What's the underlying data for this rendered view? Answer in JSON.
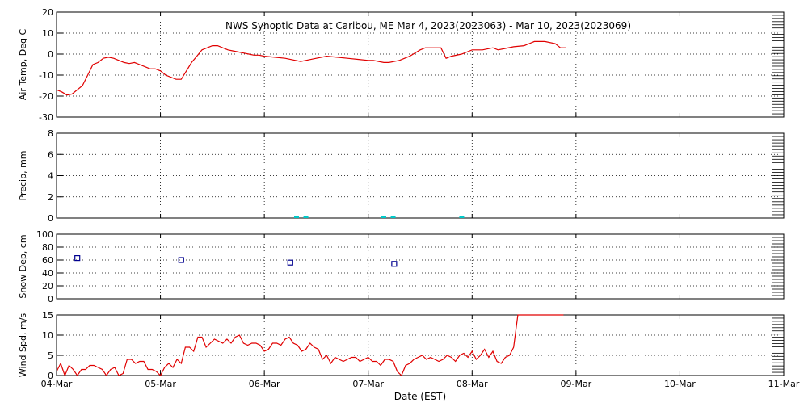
{
  "title": "NWS Synoptic Data at Caribou, ME   Mar  4, 2023(2023063) - Mar 10, 2023(2023069)",
  "xlabel": "Date (EST)",
  "x_tick_labels": [
    "04-Mar",
    "05-Mar",
    "06-Mar",
    "07-Mar",
    "08-Mar",
    "09-Mar",
    "10-Mar",
    "11-Mar"
  ],
  "colors": {
    "temp": "#e00000",
    "precip": "#00c8c8",
    "snow": "#000090",
    "wind": "#e00000",
    "axes": "#000000"
  },
  "chart_data": [
    {
      "type": "line",
      "ylabel": "Air Temp, Deg C",
      "ylim": [
        -30,
        20
      ],
      "yticks": [
        -30,
        -20,
        -10,
        0,
        10,
        20
      ],
      "xlim": [
        0,
        7
      ],
      "grid": true,
      "series": [
        {
          "x": [
            0.0,
            0.05,
            0.1,
            0.15,
            0.2,
            0.25,
            0.3,
            0.35,
            0.4,
            0.45,
            0.5,
            0.55,
            0.6,
            0.65,
            0.7,
            0.75,
            0.8,
            0.85,
            0.9,
            0.95,
            1.0,
            1.05,
            1.1,
            1.15,
            1.2,
            1.25,
            1.3,
            1.35,
            1.4,
            1.45,
            1.5,
            1.55,
            1.6,
            1.65,
            1.7,
            1.75,
            1.8,
            1.85,
            1.9,
            1.95,
            2.0,
            2.1,
            2.2,
            2.3,
            2.35,
            2.4,
            2.5,
            2.6,
            2.7,
            2.8,
            2.9,
            3.0,
            3.05,
            3.1,
            3.15,
            3.2,
            3.3,
            3.4,
            3.5,
            3.55,
            3.6,
            3.7,
            3.75,
            3.8,
            3.9,
            4.0,
            4.1,
            4.2,
            4.25,
            4.3,
            4.4,
            4.5,
            4.55,
            4.6,
            4.7,
            4.8,
            4.85,
            4.9
          ],
          "y": [
            -17,
            -18,
            -19.5,
            -19,
            -17,
            -15,
            -10,
            -5,
            -4,
            -2,
            -1.5,
            -2,
            -3,
            -4,
            -4.5,
            -4,
            -5,
            -6,
            -7,
            -7,
            -8,
            -10,
            -11,
            -12,
            -12,
            -8,
            -4,
            -1,
            2,
            3,
            4,
            4,
            3,
            2,
            1.5,
            1,
            0.5,
            0,
            -0.5,
            -0.5,
            -1,
            -1.5,
            -2,
            -3,
            -3.5,
            -3,
            -2,
            -1,
            -1.5,
            -2,
            -2.5,
            -3,
            -3,
            -3.5,
            -4,
            -4,
            -3,
            -1,
            2,
            3,
            3,
            3,
            -2,
            -1,
            0,
            2,
            2,
            3,
            2,
            2.5,
            3.5,
            4,
            5,
            6,
            6,
            5,
            3,
            3
          ]
        }
      ]
    },
    {
      "type": "bar",
      "ylabel": "Precip, mm",
      "ylim": [
        0,
        8
      ],
      "yticks": [
        0,
        2,
        4,
        6,
        8
      ],
      "xlim": [
        0,
        7
      ],
      "grid": true,
      "series": [
        {
          "x": [
            2.31,
            2.4,
            3.15,
            3.24,
            3.9
          ],
          "y": [
            0.1,
            0.1,
            0.1,
            0.1,
            0.1
          ]
        }
      ]
    },
    {
      "type": "scatter",
      "ylabel": "Snow Dep, cm",
      "ylim": [
        0,
        100
      ],
      "yticks": [
        0,
        20,
        40,
        60,
        80,
        100
      ],
      "xlim": [
        0,
        7
      ],
      "grid": true,
      "series": [
        {
          "x": [
            0.2,
            1.2,
            2.25,
            3.25
          ],
          "y": [
            63,
            60,
            56,
            54
          ]
        }
      ]
    },
    {
      "type": "line",
      "ylabel": "Wind Spd, m/s",
      "ylim": [
        0,
        15
      ],
      "yticks": [
        0,
        5,
        10,
        15
      ],
      "xlim": [
        0,
        7
      ],
      "grid": true,
      "series": [
        {
          "x": [
            0.0,
            0.04,
            0.08,
            0.12,
            0.16,
            0.2,
            0.24,
            0.28,
            0.32,
            0.36,
            0.4,
            0.44,
            0.48,
            0.52,
            0.56,
            0.6,
            0.64,
            0.68,
            0.72,
            0.76,
            0.8,
            0.84,
            0.88,
            0.92,
            0.96,
            1.0,
            1.04,
            1.08,
            1.12,
            1.16,
            1.2,
            1.24,
            1.28,
            1.32,
            1.36,
            1.4,
            1.44,
            1.48,
            1.52,
            1.56,
            1.6,
            1.64,
            1.68,
            1.72,
            1.76,
            1.8,
            1.84,
            1.88,
            1.92,
            1.96,
            2.0,
            2.04,
            2.08,
            2.12,
            2.16,
            2.2,
            2.24,
            2.28,
            2.32,
            2.36,
            2.4,
            2.44,
            2.48,
            2.52,
            2.56,
            2.6,
            2.64,
            2.68,
            2.72,
            2.76,
            2.8,
            2.84,
            2.88,
            2.92,
            2.96,
            3.0,
            3.04,
            3.08,
            3.12,
            3.16,
            3.2,
            3.24,
            3.28,
            3.32,
            3.36,
            3.4,
            3.44,
            3.48,
            3.52,
            3.56,
            3.6,
            3.64,
            3.68,
            3.72,
            3.76,
            3.8,
            3.84,
            3.88,
            3.92,
            3.96,
            4.0,
            4.04,
            4.08,
            4.12,
            4.16,
            4.2,
            4.24,
            4.28,
            4.32,
            4.36,
            4.4,
            4.44,
            4.48,
            4.52,
            4.56,
            4.6,
            4.64,
            4.68,
            4.72,
            4.76,
            4.8,
            4.84,
            4.88
          ],
          "y": [
            1.0,
            3.0,
            0.0,
            2.5,
            1.5,
            0.0,
            1.5,
            1.5,
            2.5,
            2.5,
            2.0,
            1.5,
            0.0,
            1.5,
            2.0,
            0.0,
            0.5,
            4.0,
            4.0,
            3.0,
            3.5,
            3.5,
            1.5,
            1.5,
            1.0,
            0.0,
            2.0,
            3.0,
            2.0,
            4.0,
            3.0,
            7.0,
            7.0,
            6.0,
            9.5,
            9.5,
            7.0,
            8.0,
            9.0,
            8.5,
            8.0,
            9.0,
            8.0,
            9.5,
            10.0,
            8.0,
            7.5,
            8.0,
            8.0,
            7.5,
            6.0,
            6.5,
            8.0,
            8.0,
            7.5,
            9.0,
            9.5,
            8.0,
            7.5,
            6.0,
            6.5,
            8.0,
            7.0,
            6.5,
            4.0,
            5.0,
            3.0,
            4.5,
            4.0,
            3.5,
            4.0,
            4.5,
            4.5,
            3.5,
            4.0,
            4.5,
            3.5,
            3.5,
            2.5,
            4.0,
            4.0,
            3.5,
            1.0,
            0.0,
            2.5,
            3.0,
            4.0,
            4.5,
            5.0,
            4.0,
            4.5,
            4.0,
            3.5,
            4.0,
            5.0,
            4.5,
            3.5,
            5.0,
            5.5,
            4.5,
            6.0,
            4.0,
            5.0,
            6.5,
            4.5,
            6.0,
            3.5,
            3.0,
            4.5,
            5.0,
            7.0,
            15.5,
            15.5,
            15.5,
            15.5,
            15.5,
            15.5,
            15.5,
            15.5,
            15.5,
            15.5,
            15.5,
            15.5
          ]
        }
      ]
    }
  ]
}
